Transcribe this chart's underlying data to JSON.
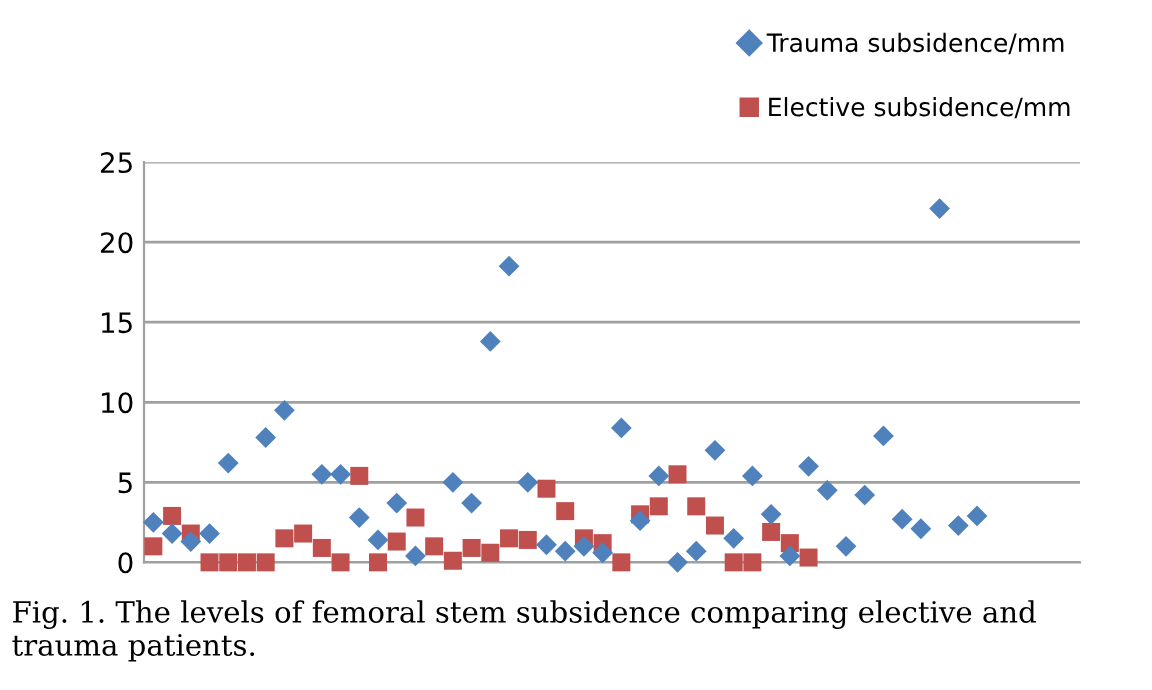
{
  "chart_data": {
    "type": "scatter",
    "categories": [
      null,
      null,
      null,
      null,
      null,
      null,
      null,
      null,
      null,
      null,
      null,
      null,
      null,
      null,
      null,
      null,
      null,
      null,
      null,
      null,
      null,
      null,
      null,
      null,
      null,
      null,
      null,
      null,
      null,
      null,
      null,
      null,
      null,
      null,
      null,
      null,
      null,
      null,
      null,
      null,
      null,
      null,
      null,
      null,
      null,
      null,
      null,
      null,
      null,
      null
    ],
    "series": [
      {
        "name": "Trauma subsidence/mm",
        "color": "#4f81bd",
        "marker": "diamond",
        "values": [
          2.5,
          1.8,
          1.3,
          1.8,
          6.2,
          null,
          7.8,
          9.5,
          null,
          5.5,
          5.5,
          2.8,
          1.4,
          3.7,
          0.4,
          null,
          5.0,
          3.7,
          13.8,
          18.5,
          5.0,
          1.1,
          0.7,
          1.0,
          0.6,
          8.4,
          2.6,
          5.4,
          0.0,
          0.7,
          7.0,
          1.5,
          5.4,
          3.0,
          0.4,
          6.0,
          4.5,
          1.0,
          4.2,
          7.9,
          2.7,
          2.1,
          22.1,
          2.3,
          2.9,
          null,
          null,
          null,
          null,
          null
        ]
      },
      {
        "name": "Elective subsidence/mm",
        "color": "#c0504d",
        "marker": "square",
        "values": [
          1.0,
          2.9,
          1.8,
          0,
          0,
          0,
          0,
          1.5,
          1.8,
          0.9,
          0,
          5.4,
          0,
          1.3,
          2.8,
          1.0,
          0.1,
          0.9,
          0.6,
          1.5,
          1.4,
          4.6,
          3.2,
          1.5,
          1.2,
          0,
          3.0,
          3.5,
          5.5,
          3.5,
          2.3,
          0,
          0,
          1.9,
          1.2,
          0.3,
          null,
          null,
          null,
          null,
          null,
          null,
          null,
          null,
          null,
          null,
          null,
          null,
          null,
          null
        ]
      }
    ],
    "ylim": [
      0,
      25
    ],
    "yticks": [
      0,
      5,
      10,
      15,
      20,
      25
    ],
    "grid": "y",
    "legend": "top right",
    "tick_labels": "y",
    "annotations": [
      "Fig. 1. The levels of femoral stem subsidence comparing elective and trauma patients."
    ]
  }
}
